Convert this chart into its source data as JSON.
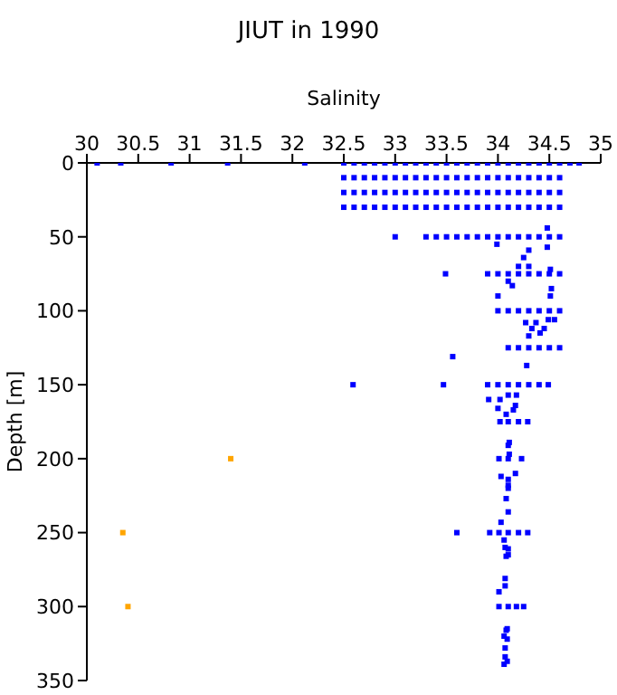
{
  "chart_data": {
    "type": "scatter",
    "title": "JIUT in 1990",
    "xlabel": "Salinity",
    "ylabel": "Depth [m]",
    "xlim": [
      30,
      35
    ],
    "xticks": [
      30,
      30.5,
      31,
      31.5,
      32,
      32.5,
      33,
      33.5,
      34,
      34.5,
      35
    ],
    "ylim": [
      350,
      0
    ],
    "yticks": [
      0,
      50,
      100,
      150,
      200,
      250,
      300,
      350
    ],
    "grid": false,
    "legend": false,
    "marker": "square",
    "series": [
      {
        "color": "#0000ff",
        "x": [
          30.1,
          30.33,
          30.82,
          31.37,
          32.12,
          32.5,
          32.6,
          32.7,
          32.8,
          32.9,
          33,
          33.1,
          33.2,
          33.3,
          33.4,
          33.5,
          33.6,
          33.7,
          33.8,
          33.9,
          34,
          34.1,
          34.2,
          34.3,
          34.4,
          34.5,
          34.6,
          34.7,
          34.79,
          32.5,
          32.6,
          32.7,
          32.8,
          32.9,
          33,
          33.1,
          33.2,
          33.3,
          33.4,
          33.5,
          33.6,
          33.7,
          33.8,
          33.9,
          34,
          34.1,
          34.2,
          34.3,
          34.4,
          34.5,
          34.6,
          32.5,
          32.6,
          32.7,
          32.8,
          32.9,
          33,
          33.1,
          33.2,
          33.3,
          33.4,
          33.5,
          33.6,
          33.7,
          33.8,
          33.9,
          34,
          34.1,
          34.2,
          34.3,
          34.4,
          34.5,
          34.6,
          32.5,
          32.6,
          32.7,
          32.8,
          32.9,
          33,
          33.1,
          33.2,
          33.3,
          33.4,
          33.5,
          33.6,
          33.7,
          33.8,
          33.9,
          34,
          34.1,
          34.2,
          34.3,
          34.4,
          34.5,
          34.6,
          34.48,
          33.0,
          33.3,
          33.4,
          33.5,
          33.6,
          33.7,
          33.8,
          33.9,
          34,
          34.1,
          34.2,
          34.3,
          34.4,
          34.5,
          34.6,
          33.99,
          34.48,
          34.3,
          34.25,
          34.3,
          34.2,
          34.51,
          33.49,
          33.9,
          34,
          34.1,
          34.2,
          34.3,
          34.4,
          34.5,
          34.6,
          34.1,
          34.14,
          34.52,
          34.0,
          34.51,
          34.0,
          34.1,
          34.2,
          34.3,
          34.4,
          34.5,
          34.6,
          34.27,
          34.37,
          34.49,
          34.55,
          34.33,
          34.45,
          34.3,
          34.41,
          34.1,
          34.2,
          34.3,
          34.4,
          34.5,
          34.6,
          33.56,
          34.28,
          32.59,
          33.47,
          33.9,
          34,
          34.1,
          34.2,
          34.3,
          34.4,
          34.49,
          33.91,
          34.02,
          34.1,
          34.18,
          34.0,
          34.17,
          34.08,
          34.15,
          34.02,
          34.1,
          34.2,
          34.29,
          34.11,
          34.1,
          34.01,
          34.1,
          34.23,
          34.11,
          34.17,
          34.03,
          34.1,
          34.1,
          34.1,
          34.08,
          34.1,
          34.03,
          33.6,
          33.92,
          34.01,
          34.1,
          34.2,
          34.29,
          34.06,
          34.07,
          34.1,
          34.1,
          34.08,
          34.07,
          34.07,
          34.01,
          34.01,
          34.1,
          34.18,
          34.25,
          34.09,
          34.06,
          34.09,
          34.07,
          34.07,
          34.06,
          34.09,
          34.08
        ],
        "values": [
          0,
          0,
          0,
          0,
          0,
          0,
          0,
          0,
          0,
          0,
          0,
          0,
          0,
          0,
          0,
          0,
          0,
          0,
          0,
          0,
          0,
          0,
          0,
          0,
          0,
          0,
          0,
          0,
          0,
          10,
          10,
          10,
          10,
          10,
          10,
          10,
          10,
          10,
          10,
          10,
          10,
          10,
          10,
          10,
          10,
          10,
          10,
          10,
          10,
          10,
          10,
          20,
          20,
          20,
          20,
          20,
          20,
          20,
          20,
          20,
          20,
          20,
          20,
          20,
          20,
          20,
          20,
          20,
          20,
          20,
          20,
          20,
          20,
          30,
          30,
          30,
          30,
          30,
          30,
          30,
          30,
          30,
          30,
          30,
          30,
          30,
          30,
          30,
          30,
          30,
          30,
          30,
          30,
          30,
          30,
          44,
          50,
          50,
          50,
          50,
          50,
          50,
          50,
          50,
          50,
          50,
          50,
          50,
          50,
          50,
          50,
          55,
          57,
          59,
          64,
          70,
          70,
          72,
          75,
          75,
          75,
          75,
          75,
          75,
          75,
          75,
          75,
          80,
          83,
          85,
          90,
          90,
          100,
          100,
          100,
          100,
          100,
          100,
          100,
          108,
          108,
          106,
          106,
          112,
          112,
          117,
          115,
          125,
          125,
          125,
          125,
          125,
          125,
          131,
          137,
          150,
          150,
          150,
          150,
          150,
          150,
          150,
          150,
          150,
          160,
          160,
          157,
          157,
          166,
          164,
          170,
          167,
          175,
          175,
          175,
          175,
          189,
          191,
          200,
          200,
          200,
          197,
          210,
          212,
          214,
          218,
          220,
          227,
          236,
          243,
          250,
          250,
          250,
          250,
          250,
          250,
          255,
          260,
          261,
          265,
          266,
          281,
          286,
          290,
          300,
          300,
          300,
          300,
          315,
          320,
          322,
          328,
          334,
          339,
          337,
          316
        ]
      },
      {
        "color": "#ffa500",
        "x": [
          31.4,
          30.35,
          30.4
        ],
        "values": [
          200,
          250,
          300
        ]
      }
    ]
  }
}
